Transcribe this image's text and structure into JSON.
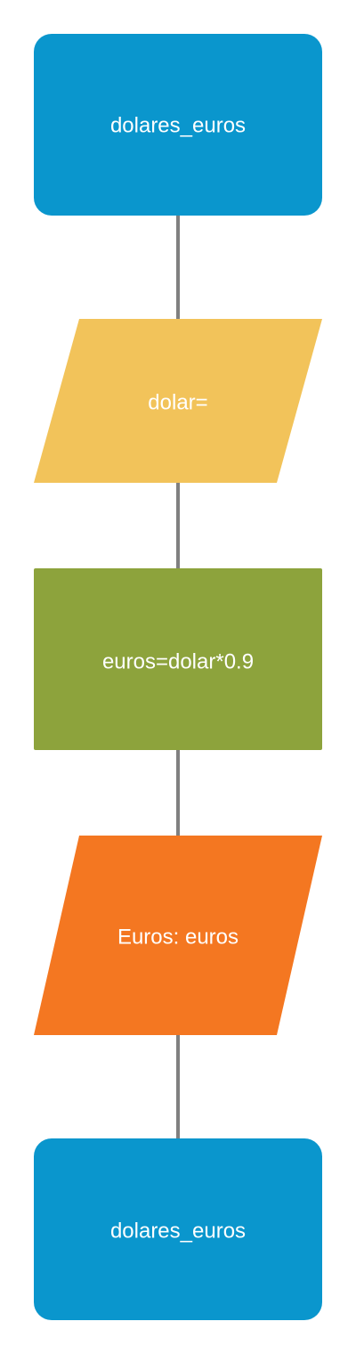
{
  "flowchart": {
    "nodes": [
      {
        "id": "start",
        "shape": "rounded-rect",
        "label": "dolares_euros",
        "color": "#0A96CD"
      },
      {
        "id": "input",
        "shape": "parallelogram",
        "label": "dolar=",
        "color": "#F2C35A"
      },
      {
        "id": "process",
        "shape": "rect",
        "label": "euros=dolar*0.9",
        "color": "#8DA33C"
      },
      {
        "id": "output",
        "shape": "parallelogram",
        "label": "Euros: euros",
        "color": "#F47721"
      },
      {
        "id": "end",
        "shape": "rounded-rect",
        "label": "dolares_euros",
        "color": "#0A96CD"
      }
    ],
    "connector_color": "#808080"
  }
}
